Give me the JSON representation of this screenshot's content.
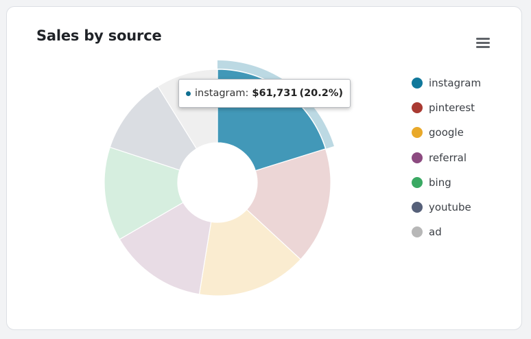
{
  "chart_data": {
    "type": "pie",
    "title": "Sales by source",
    "donut": true,
    "legend_position": "right",
    "categories": [
      "instagram",
      "pinterest",
      "google",
      "referral",
      "bing",
      "youtube",
      "ad"
    ],
    "values": [
      61731,
      51000,
      48000,
      43000,
      41000,
      34000,
      27000
    ],
    "colors": [
      "#10789b",
      "#a93a32",
      "#e9a92a",
      "#8c4a80",
      "#3aa963",
      "#566079",
      "#b7b7b7"
    ],
    "slice_fills": [
      "#4298b8",
      "#ecd6d6",
      "#faecd0",
      "#e8dce5",
      "#d6eedf",
      "#dadde2",
      "#efefef"
    ],
    "highlighted": "instagram"
  },
  "tooltip": {
    "label": "instagram:",
    "value": "$61,731",
    "percent": "(20.2%)"
  },
  "icons": {
    "menu": "hamburger-menu-icon"
  }
}
